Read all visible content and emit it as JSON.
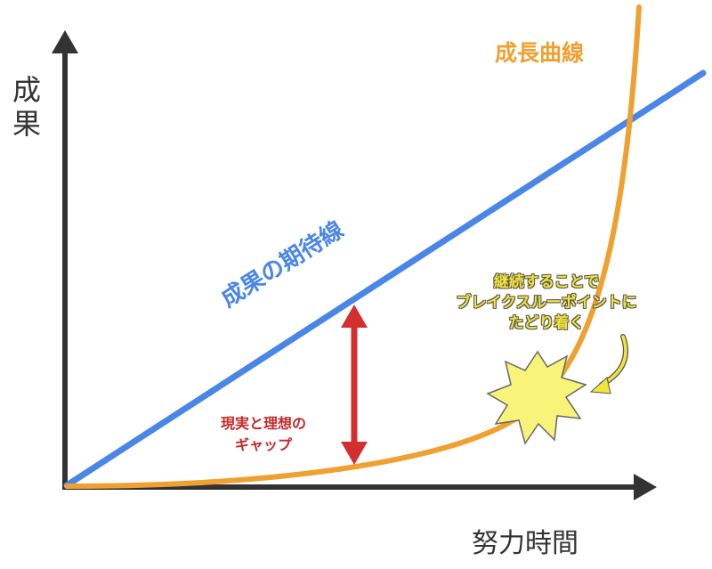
{
  "axes": {
    "y_label": [
      "成",
      "果"
    ],
    "x_label": "努力時間"
  },
  "growth_curve": {
    "label": "成長曲線",
    "color": "#f0a030"
  },
  "expectation_line": {
    "label": "成果の期待線",
    "color": "#4a86e8"
  },
  "gap": {
    "label_lines": [
      "現実と理想の",
      "ギャップ"
    ],
    "color": "#d32f2f"
  },
  "breakthrough": {
    "note_lines": [
      "継続することで",
      "ブレイクスルーポイントに",
      "たどり着く"
    ],
    "burst_color": "#f8f47a",
    "arrow_color": "#f2e43a"
  },
  "axis_color": "#333333"
}
